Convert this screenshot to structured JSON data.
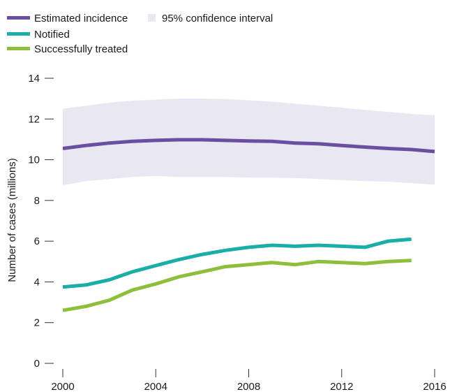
{
  "chart_data": {
    "type": "line",
    "x": [
      2000,
      2001,
      2002,
      2003,
      2004,
      2005,
      2006,
      2007,
      2008,
      2009,
      2010,
      2011,
      2012,
      2013,
      2014,
      2015,
      2016
    ],
    "series": [
      {
        "name": "Estimated incidence",
        "color": "#6a4fa0",
        "values": [
          10.55,
          10.7,
          10.82,
          10.9,
          10.95,
          10.98,
          10.98,
          10.95,
          10.92,
          10.9,
          10.82,
          10.78,
          10.7,
          10.62,
          10.55,
          10.5,
          10.4
        ]
      },
      {
        "name": "Notified",
        "color": "#1aaea6",
        "values": [
          3.75,
          3.85,
          4.1,
          4.5,
          4.8,
          5.1,
          5.35,
          5.55,
          5.7,
          5.8,
          5.75,
          5.8,
          5.75,
          5.7,
          6.0,
          6.1,
          null
        ]
      },
      {
        "name": "Successfully treated",
        "color": "#8dbf3c",
        "values": [
          2.6,
          2.8,
          3.1,
          3.6,
          3.9,
          4.25,
          4.5,
          4.75,
          4.85,
          4.95,
          4.85,
          5.0,
          4.95,
          4.9,
          5.0,
          5.05,
          null
        ]
      }
    ],
    "confidence_interval": {
      "name": "95% confidence interval",
      "color": "#e9e7f2",
      "lower": [
        8.75,
        8.95,
        9.05,
        9.15,
        9.2,
        9.15,
        9.15,
        9.15,
        9.12,
        9.12,
        9.1,
        9.05,
        9.0,
        8.95,
        8.92,
        8.85,
        8.78
      ],
      "upper": [
        12.5,
        12.65,
        12.8,
        12.9,
        12.95,
        13.0,
        13.0,
        12.98,
        12.92,
        12.85,
        12.75,
        12.65,
        12.55,
        12.45,
        12.35,
        12.25,
        12.18
      ]
    },
    "ylabel": "Number of cases (millions)",
    "xlabel": "",
    "ylim": [
      0,
      14
    ],
    "xlim": [
      2000,
      2016
    ],
    "yticks": [
      0,
      2,
      4,
      6,
      8,
      10,
      12,
      14
    ],
    "xticks": [
      2000,
      2004,
      2008,
      2012,
      2016
    ],
    "legend_position": "top-left",
    "grid": false
  }
}
